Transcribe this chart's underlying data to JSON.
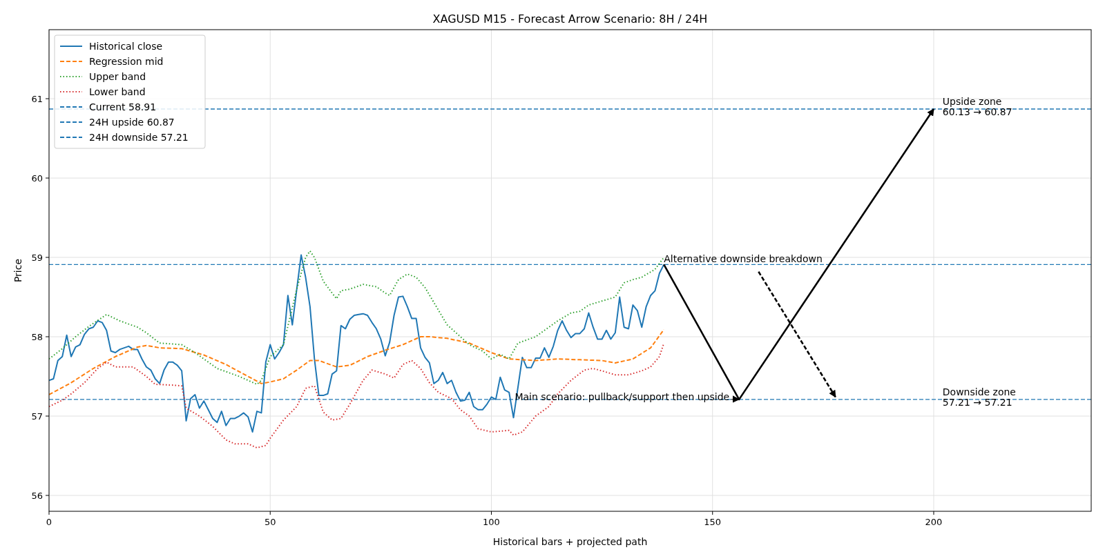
{
  "chart_data": {
    "type": "line",
    "title": "XAGUSD M15 - Forecast Arrow Scenario: 8H / 24H",
    "xlabel": "Historical bars + projected path",
    "ylabel": "Price",
    "xlim": [
      0,
      235.6
    ],
    "ylim": [
      55.8,
      61.87
    ],
    "xticks": [
      0,
      50,
      100,
      150,
      200
    ],
    "yticks": [
      56,
      57,
      58,
      59,
      60,
      61
    ],
    "grid": true,
    "legend": "top left",
    "series": [
      {
        "name": "Historical close",
        "color": "#1f77b4",
        "line_style": "solid",
        "x": [
          0,
          1,
          2,
          3,
          4,
          5,
          6,
          7,
          8,
          9,
          10,
          11,
          12,
          13,
          14,
          15,
          16,
          17,
          18,
          19,
          20,
          21,
          22,
          23,
          24,
          25,
          26,
          27,
          28,
          29,
          30,
          31,
          32,
          33,
          34,
          35,
          36,
          37,
          38,
          39,
          40,
          41,
          42,
          43,
          44,
          45,
          46,
          47,
          48,
          49,
          50,
          51,
          52,
          53,
          54,
          55,
          56,
          57,
          58,
          59,
          60,
          61,
          62,
          63,
          64,
          65,
          66,
          67,
          68,
          69,
          70,
          71,
          72,
          73,
          74,
          75,
          76,
          77,
          78,
          79,
          80,
          81,
          82,
          83,
          84,
          85,
          86,
          87,
          88,
          89,
          90,
          91,
          92,
          93,
          94,
          95,
          96,
          97,
          98,
          99,
          100,
          101,
          102,
          103,
          104,
          105,
          106,
          107,
          108,
          109,
          110,
          111,
          112,
          113,
          114,
          115,
          116,
          117,
          118,
          119,
          120,
          121,
          122,
          123,
          124,
          125,
          126,
          127,
          128,
          129,
          130,
          131,
          132,
          133,
          134,
          135,
          136,
          137,
          138,
          139
        ],
        "values": [
          57.45,
          57.47,
          57.7,
          57.75,
          58.02,
          57.75,
          57.87,
          57.9,
          58.03,
          58.1,
          58.12,
          58.2,
          58.18,
          58.08,
          57.82,
          57.8,
          57.84,
          57.86,
          57.88,
          57.84,
          57.84,
          57.72,
          57.62,
          57.58,
          57.47,
          57.41,
          57.58,
          57.68,
          57.68,
          57.64,
          57.57,
          56.94,
          57.22,
          57.27,
          57.1,
          57.19,
          57.08,
          56.97,
          56.92,
          57.06,
          56.88,
          56.97,
          56.97,
          57.0,
          57.04,
          56.99,
          56.8,
          57.06,
          57.04,
          57.68,
          57.9,
          57.72,
          57.8,
          57.9,
          58.52,
          58.15,
          58.6,
          59.03,
          58.75,
          58.38,
          57.72,
          57.26,
          57.26,
          57.28,
          57.53,
          57.57,
          58.14,
          58.1,
          58.22,
          58.27,
          58.28,
          58.29,
          58.27,
          58.18,
          58.1,
          57.97,
          57.76,
          57.93,
          58.27,
          58.5,
          58.51,
          58.38,
          58.23,
          58.23,
          57.86,
          57.74,
          57.67,
          57.41,
          57.45,
          57.55,
          57.41,
          57.45,
          57.3,
          57.19,
          57.2,
          57.3,
          57.12,
          57.08,
          57.08,
          57.15,
          57.24,
          57.21,
          57.49,
          57.33,
          57.3,
          56.98,
          57.36,
          57.74,
          57.61,
          57.61,
          57.73,
          57.73,
          57.86,
          57.74,
          57.88,
          58.08,
          58.2,
          58.08,
          57.99,
          58.04,
          58.04,
          58.1,
          58.3,
          58.12,
          57.97,
          57.97,
          58.08,
          57.97,
          58.05,
          58.5,
          58.12,
          58.1,
          58.4,
          58.33,
          58.12,
          58.38,
          58.52,
          58.58,
          58.8,
          58.91
        ]
      },
      {
        "name": "Regression mid",
        "color": "#ff7f0e",
        "line_style": "dashed",
        "x": [
          0,
          5,
          10,
          15,
          20,
          22,
          25,
          30,
          35,
          40,
          45,
          48,
          50,
          53,
          56,
          59,
          61,
          65,
          68,
          72,
          76,
          80,
          84,
          86,
          90,
          95,
          100,
          104,
          110,
          115,
          120,
          125,
          128,
          132,
          136,
          139
        ],
        "values": [
          57.27,
          57.42,
          57.6,
          57.75,
          57.87,
          57.89,
          57.86,
          57.85,
          57.77,
          57.65,
          57.5,
          57.41,
          57.43,
          57.47,
          57.58,
          57.7,
          57.7,
          57.62,
          57.64,
          57.75,
          57.83,
          57.9,
          58.0,
          58.0,
          57.98,
          57.92,
          57.8,
          57.72,
          57.7,
          57.72,
          57.71,
          57.7,
          57.67,
          57.72,
          57.86,
          58.09
        ]
      },
      {
        "name": "Upper band",
        "color": "#2ca02c",
        "line_style": "dotted",
        "x": [
          0,
          3,
          6,
          9,
          13,
          16,
          20,
          22,
          25,
          30,
          33,
          36,
          38,
          43,
          47,
          48,
          50,
          53,
          56,
          58,
          59,
          60,
          62,
          64,
          65,
          66,
          68,
          71,
          74,
          76,
          77,
          79,
          81,
          83,
          85,
          90,
          95,
          98,
          100,
          102,
          104,
          106,
          110,
          115,
          118,
          120,
          122,
          125,
          128,
          130,
          132,
          134,
          137,
          139
        ],
        "values": [
          57.72,
          57.85,
          58.0,
          58.13,
          58.28,
          58.2,
          58.12,
          58.05,
          57.92,
          57.9,
          57.8,
          57.68,
          57.6,
          57.5,
          57.4,
          57.45,
          57.75,
          57.9,
          58.6,
          59.0,
          59.08,
          59.0,
          58.7,
          58.55,
          58.48,
          58.58,
          58.6,
          58.66,
          58.63,
          58.55,
          58.52,
          58.72,
          58.79,
          58.75,
          58.62,
          58.15,
          57.9,
          57.82,
          57.72,
          57.78,
          57.72,
          57.92,
          58.0,
          58.2,
          58.3,
          58.32,
          58.4,
          58.45,
          58.5,
          58.68,
          58.72,
          58.75,
          58.85,
          59.0
        ]
      },
      {
        "name": "Lower band",
        "color": "#d62728",
        "line_style": "dotted",
        "x": [
          0,
          3,
          5,
          8,
          11,
          13,
          15,
          19,
          22,
          24,
          28,
          30,
          31,
          34,
          37,
          40,
          42,
          45,
          47,
          49,
          50,
          53,
          56,
          58,
          60,
          62,
          64,
          66,
          68,
          71,
          73,
          76,
          78,
          80,
          82,
          84,
          86,
          88,
          91,
          93,
          95,
          97,
          100,
          104,
          105,
          107,
          110,
          113,
          115,
          118,
          121,
          123,
          125,
          128,
          131,
          134,
          136,
          138,
          139
        ],
        "values": [
          57.12,
          57.2,
          57.28,
          57.42,
          57.6,
          57.68,
          57.62,
          57.62,
          57.5,
          57.4,
          57.39,
          57.38,
          57.1,
          57.0,
          56.87,
          56.7,
          56.65,
          56.65,
          56.6,
          56.63,
          56.72,
          56.95,
          57.12,
          57.35,
          57.38,
          57.05,
          56.95,
          56.97,
          57.15,
          57.45,
          57.58,
          57.53,
          57.48,
          57.65,
          57.7,
          57.6,
          57.42,
          57.3,
          57.22,
          57.08,
          57.0,
          56.84,
          56.8,
          56.82,
          56.76,
          56.8,
          57.0,
          57.12,
          57.28,
          57.45,
          57.58,
          57.6,
          57.57,
          57.52,
          57.52,
          57.57,
          57.62,
          57.75,
          57.92
        ]
      },
      {
        "color": "#000000",
        "line_style": "solid",
        "x": [
          139,
          156,
          200
        ],
        "values": [
          58.91,
          57.21,
          60.87
        ]
      },
      {
        "color": "#000000",
        "line_style": "dashed",
        "x": [
          160.4,
          177.8
        ],
        "values": [
          58.82,
          57.24
        ]
      }
    ],
    "ref_lines": [
      {
        "axis": "y",
        "value": 58.91,
        "label": "Current 58.91",
        "color": "#1f77b4",
        "line_style": "dashed"
      },
      {
        "axis": "y",
        "value": 60.87,
        "label": "24H upside 60.87",
        "color": "#1f77b4",
        "line_style": "dashed"
      },
      {
        "axis": "y",
        "value": 57.21,
        "label": "24H downside 57.21",
        "color": "#1f77b4",
        "line_style": "dashed"
      }
    ],
    "annotations": [
      {
        "text": "Main scenario: pullback/support then upside",
        "x": 156,
        "y": 57.21
      },
      {
        "text": "Alternative downside breakdown",
        "x": 139,
        "y": 58.91
      },
      {
        "text": "Upside zone\n60.13 → 60.87",
        "x": 202,
        "y": 60.87
      },
      {
        "text": "Downside zone\n57.21 → 57.21",
        "x": 202,
        "y": 57.21
      }
    ]
  }
}
